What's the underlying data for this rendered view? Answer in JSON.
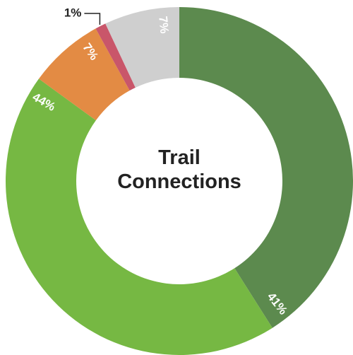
{
  "chart_data": {
    "type": "donut",
    "title": "Trail Connections",
    "values": [
      41,
      44,
      7,
      1,
      7
    ],
    "value_labels": [
      "41%",
      "44%",
      "7%",
      "1%",
      "7%"
    ],
    "colors": [
      "#5c8a4e",
      "#76b843",
      "#e38b44",
      "#c9566a",
      "#cfcfcf"
    ]
  }
}
